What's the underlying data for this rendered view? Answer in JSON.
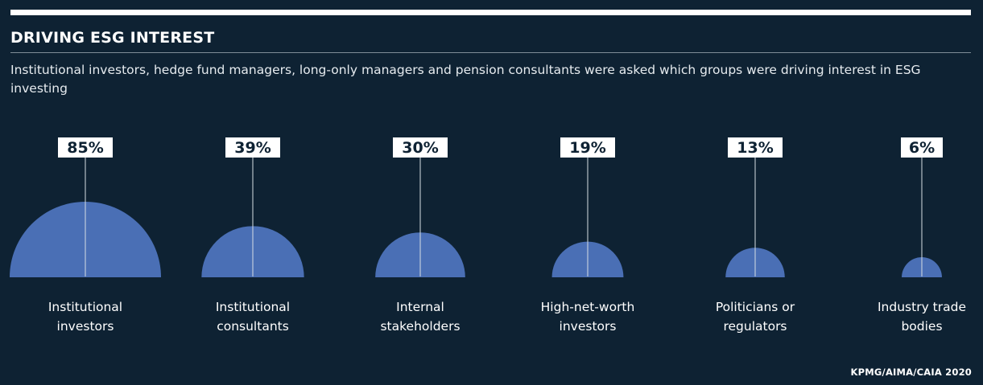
{
  "header": {
    "title": "DRIVING ESG INTEREST",
    "subtitle": "Institutional investors, hedge fund managers, long-only managers and pension consultants were asked which groups were driving interest in ESG investing"
  },
  "chart_data": {
    "type": "bar",
    "title": "DRIVING ESG INTEREST",
    "subtitle": "Institutional investors, hedge fund managers, long-only managers and pension consultants were asked which groups were driving interest in ESG investing",
    "categories": [
      [
        "Institutional",
        "investors"
      ],
      [
        "Institutional",
        "consultants"
      ],
      [
        "Internal",
        "stakeholders"
      ],
      [
        "High-net-worth",
        "investors"
      ],
      [
        "Politicians or",
        "regulators"
      ],
      [
        "Industry trade",
        "bodies"
      ]
    ],
    "values": [
      85,
      39,
      30,
      19,
      13,
      6
    ],
    "value_labels": [
      "85%",
      "39%",
      "30%",
      "19%",
      "13%",
      "6%"
    ],
    "unit": "%",
    "mark": "half-circle",
    "colors": {
      "background": "#0e2233",
      "mark": "#4a6fb5",
      "label_box": "#ffffff",
      "label_text": "#0e2233",
      "text": "#ffffff"
    }
  },
  "footer": {
    "source": "KPMG/AIMA/CAIA 2020"
  }
}
